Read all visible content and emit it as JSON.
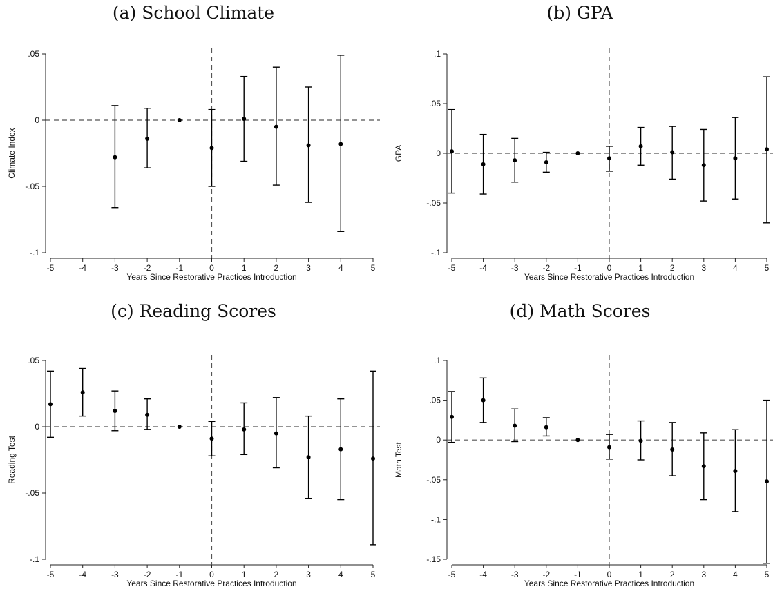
{
  "chart_data": [
    {
      "panel_title": "(a) School Climate",
      "type": "scatter",
      "xlabel": "Years Since Restorative Practices Introduction",
      "ylabel": "Climate Index",
      "xlim": [
        -5,
        5
      ],
      "ylim": [
        -0.1,
        0.05
      ],
      "xticks": [
        "-5",
        "-4",
        "-3",
        "-2",
        "-1",
        "0",
        "1",
        "2",
        "3",
        "4",
        "5"
      ],
      "yticks": [
        {
          "value": 0.05,
          "label": ".05"
        },
        {
          "value": 0,
          "label": "0"
        },
        {
          "value": -0.05,
          "label": "-.05"
        },
        {
          "value": -0.1,
          "label": "-.1"
        }
      ],
      "points": [
        {
          "x": -3,
          "y": -0.028,
          "lo": -0.066,
          "hi": 0.011
        },
        {
          "x": -2,
          "y": -0.014,
          "lo": -0.036,
          "hi": 0.009
        },
        {
          "x": -1,
          "y": 0.0,
          "lo": 0.0,
          "hi": 0.0
        },
        {
          "x": 0,
          "y": -0.021,
          "lo": -0.05,
          "hi": 0.008
        },
        {
          "x": 1,
          "y": 0.001,
          "lo": -0.031,
          "hi": 0.033
        },
        {
          "x": 2,
          "y": -0.005,
          "lo": -0.049,
          "hi": 0.04
        },
        {
          "x": 3,
          "y": -0.019,
          "lo": -0.062,
          "hi": 0.025
        },
        {
          "x": 4,
          "y": -0.018,
          "lo": -0.084,
          "hi": 0.049
        }
      ]
    },
    {
      "panel_title": "(b) GPA",
      "type": "scatter",
      "xlabel": "Years Since Restorative Practices Introduction",
      "ylabel": "GPA",
      "xlim": [
        -5,
        5
      ],
      "ylim": [
        -0.1,
        0.1
      ],
      "xticks": [
        "-5",
        "-4",
        "-3",
        "-2",
        "-1",
        "0",
        "1",
        "2",
        "3",
        "4",
        "5"
      ],
      "yticks": [
        {
          "value": 0.1,
          "label": ".1"
        },
        {
          "value": 0.05,
          "label": ".05"
        },
        {
          "value": 0,
          "label": "0"
        },
        {
          "value": -0.05,
          "label": "-.05"
        },
        {
          "value": -0.1,
          "label": "-.1"
        }
      ],
      "points": [
        {
          "x": -5,
          "y": 0.002,
          "lo": -0.04,
          "hi": 0.044
        },
        {
          "x": -4,
          "y": -0.011,
          "lo": -0.041,
          "hi": 0.019
        },
        {
          "x": -3,
          "y": -0.007,
          "lo": -0.029,
          "hi": 0.015
        },
        {
          "x": -2,
          "y": -0.009,
          "lo": -0.019,
          "hi": 0.001
        },
        {
          "x": -1,
          "y": 0.0,
          "lo": 0.0,
          "hi": 0.0
        },
        {
          "x": 0,
          "y": -0.005,
          "lo": -0.018,
          "hi": 0.007
        },
        {
          "x": 1,
          "y": 0.007,
          "lo": -0.012,
          "hi": 0.026
        },
        {
          "x": 2,
          "y": 0.001,
          "lo": -0.026,
          "hi": 0.027
        },
        {
          "x": 3,
          "y": -0.012,
          "lo": -0.048,
          "hi": 0.024
        },
        {
          "x": 4,
          "y": -0.005,
          "lo": -0.046,
          "hi": 0.036
        },
        {
          "x": 5,
          "y": 0.004,
          "lo": -0.07,
          "hi": 0.077
        }
      ]
    },
    {
      "panel_title": "(c) Reading Scores",
      "type": "scatter",
      "xlabel": "Years Since Restorative Practices Introduction",
      "ylabel": "Reading Test",
      "xlim": [
        -5,
        5
      ],
      "ylim": [
        -0.1,
        0.05
      ],
      "xticks": [
        "-5",
        "-4",
        "-3",
        "-2",
        "-1",
        "0",
        "1",
        "2",
        "3",
        "4",
        "5"
      ],
      "yticks": [
        {
          "value": 0.05,
          "label": ".05"
        },
        {
          "value": 0,
          "label": "0"
        },
        {
          "value": -0.05,
          "label": "-.05"
        },
        {
          "value": -0.1,
          "label": "-.1"
        }
      ],
      "points": [
        {
          "x": -5,
          "y": 0.017,
          "lo": -0.008,
          "hi": 0.042
        },
        {
          "x": -4,
          "y": 0.026,
          "lo": 0.008,
          "hi": 0.044
        },
        {
          "x": -3,
          "y": 0.012,
          "lo": -0.003,
          "hi": 0.027
        },
        {
          "x": -2,
          "y": 0.009,
          "lo": -0.002,
          "hi": 0.021
        },
        {
          "x": -1,
          "y": 0.0,
          "lo": 0.0,
          "hi": 0.0
        },
        {
          "x": 0,
          "y": -0.009,
          "lo": -0.022,
          "hi": 0.004
        },
        {
          "x": 1,
          "y": -0.002,
          "lo": -0.021,
          "hi": 0.018
        },
        {
          "x": 2,
          "y": -0.005,
          "lo": -0.031,
          "hi": 0.022
        },
        {
          "x": 3,
          "y": -0.023,
          "lo": -0.054,
          "hi": 0.008
        },
        {
          "x": 4,
          "y": -0.017,
          "lo": -0.055,
          "hi": 0.021
        },
        {
          "x": 5,
          "y": -0.024,
          "lo": -0.089,
          "hi": 0.042
        }
      ]
    },
    {
      "panel_title": "(d) Math Scores",
      "type": "scatter",
      "xlabel": "Years Since Restorative Practices Introduction",
      "ylabel": "Math Test",
      "xlim": [
        -5,
        5
      ],
      "ylim": [
        -0.15,
        0.1
      ],
      "xticks": [
        "-5",
        "-4",
        "-3",
        "-2",
        "-1",
        "0",
        "1",
        "2",
        "3",
        "4",
        "5"
      ],
      "yticks": [
        {
          "value": 0.1,
          "label": ".1"
        },
        {
          "value": 0.05,
          "label": ".05"
        },
        {
          "value": 0,
          "label": "0"
        },
        {
          "value": -0.05,
          "label": "-.05"
        },
        {
          "value": -0.1,
          "label": "-.1"
        },
        {
          "value": -0.15,
          "label": "-.15"
        }
      ],
      "points": [
        {
          "x": -5,
          "y": 0.029,
          "lo": -0.003,
          "hi": 0.061
        },
        {
          "x": -4,
          "y": 0.05,
          "lo": 0.022,
          "hi": 0.078
        },
        {
          "x": -3,
          "y": 0.018,
          "lo": -0.002,
          "hi": 0.039
        },
        {
          "x": -2,
          "y": 0.016,
          "lo": 0.005,
          "hi": 0.028
        },
        {
          "x": -1,
          "y": 0.0,
          "lo": 0.0,
          "hi": 0.0
        },
        {
          "x": 0,
          "y": -0.009,
          "lo": -0.024,
          "hi": 0.007
        },
        {
          "x": 1,
          "y": -0.001,
          "lo": -0.025,
          "hi": 0.024
        },
        {
          "x": 2,
          "y": -0.012,
          "lo": -0.045,
          "hi": 0.022
        },
        {
          "x": 3,
          "y": -0.033,
          "lo": -0.075,
          "hi": 0.009
        },
        {
          "x": 4,
          "y": -0.039,
          "lo": -0.09,
          "hi": 0.013
        },
        {
          "x": 5,
          "y": -0.052,
          "lo": -0.155,
          "hi": 0.05
        }
      ]
    }
  ]
}
